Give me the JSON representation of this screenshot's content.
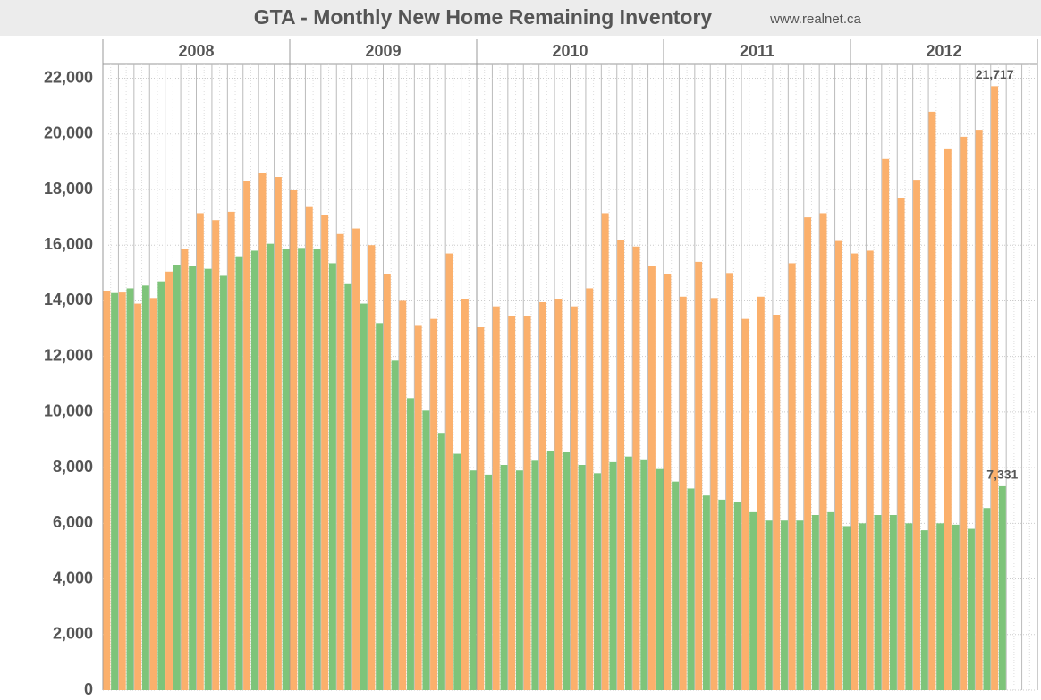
{
  "chart_data": {
    "type": "bar",
    "title": "GTA - Monthly New Home Remaining Inventory",
    "subtitle": "www.realnet.ca",
    "years": [
      "2008",
      "2009",
      "2010",
      "2011",
      "2012"
    ],
    "categories": [
      null,
      null,
      null,
      null,
      null,
      null,
      null,
      null,
      null,
      null,
      null,
      null,
      null,
      null,
      null,
      null,
      null,
      null,
      null,
      null,
      null,
      null,
      null,
      null,
      null,
      null,
      null,
      null,
      null,
      null,
      null,
      null,
      null,
      null,
      null,
      null,
      null,
      null,
      null,
      null,
      null,
      null,
      null,
      null,
      null,
      null,
      null,
      null,
      null,
      null,
      null,
      null,
      null,
      null,
      null,
      null,
      null,
      null,
      null,
      null
    ],
    "series": [
      {
        "color": "#fbb06c",
        "values": [
          14350,
          14300,
          13900,
          14100,
          15050,
          15850,
          17150,
          16900,
          17200,
          18300,
          18600,
          18450,
          18000,
          17400,
          17100,
          16400,
          16600,
          16000,
          14950,
          14000,
          13100,
          13350,
          15700,
          14050,
          13050,
          13800,
          13450,
          13450,
          13950,
          14050,
          13800,
          14450,
          17150,
          16200,
          15950,
          15250,
          14950,
          14150,
          15400,
          14100,
          15000,
          13350,
          14150,
          13500,
          15350,
          17000,
          17150,
          16150,
          15700,
          15800,
          19100,
          17700,
          18350,
          20800,
          19450,
          19900,
          20150,
          21717,
          null,
          null
        ],
        "value_labels": [
          null,
          null,
          null,
          null,
          null,
          null,
          null,
          null,
          null,
          null,
          null,
          null,
          null,
          null,
          null,
          null,
          null,
          null,
          null,
          null,
          null,
          null,
          null,
          null,
          null,
          null,
          null,
          null,
          null,
          null,
          null,
          null,
          null,
          null,
          null,
          null,
          null,
          null,
          null,
          null,
          null,
          null,
          null,
          null,
          null,
          null,
          null,
          null,
          null,
          null,
          null,
          null,
          null,
          null,
          null,
          null,
          null,
          "21,717",
          null,
          null
        ]
      },
      {
        "color": "#7ec47a",
        "values": [
          14280,
          14450,
          14550,
          14700,
          15300,
          15250,
          15150,
          14900,
          15600,
          15800,
          16050,
          15850,
          15900,
          15850,
          15350,
          14600,
          13900,
          13200,
          11850,
          10500,
          10050,
          9250,
          8500,
          7900,
          7750,
          8100,
          7900,
          8250,
          8600,
          8550,
          8100,
          7800,
          8200,
          8400,
          8300,
          7950,
          7500,
          7250,
          7000,
          6850,
          6750,
          6400,
          6100,
          6100,
          6100,
          6300,
          6400,
          5900,
          6000,
          6300,
          6300,
          6000,
          5750,
          6000,
          5950,
          5800,
          6550,
          7331,
          null,
          null
        ],
        "value_labels": [
          null,
          null,
          null,
          null,
          null,
          null,
          null,
          null,
          null,
          null,
          null,
          null,
          null,
          null,
          null,
          null,
          null,
          null,
          null,
          null,
          null,
          null,
          null,
          null,
          null,
          null,
          null,
          null,
          null,
          null,
          null,
          null,
          null,
          null,
          null,
          null,
          null,
          null,
          null,
          null,
          null,
          null,
          null,
          null,
          null,
          null,
          null,
          null,
          null,
          null,
          null,
          null,
          null,
          null,
          null,
          null,
          null,
          "7,331",
          null,
          null
        ]
      }
    ],
    "ylim": [
      0,
      22500
    ],
    "yticks": [
      0,
      {
        "value": 2000,
        "label": "2,000"
      },
      {
        "value": 4000,
        "label": "4,000"
      },
      {
        "value": 6000,
        "label": "6,000"
      },
      {
        "value": 8000,
        "label": "8,000"
      },
      {
        "value": 10000,
        "label": "10,000"
      },
      {
        "value": 12000,
        "label": "12,000"
      },
      {
        "value": 14000,
        "label": "14,000"
      },
      {
        "value": 16000,
        "label": "16,000"
      },
      {
        "value": 18000,
        "label": "18,000"
      },
      {
        "value": 20000,
        "label": "20,000"
      },
      {
        "value": 22000,
        "label": "22,000"
      }
    ],
    "grid": true
  }
}
